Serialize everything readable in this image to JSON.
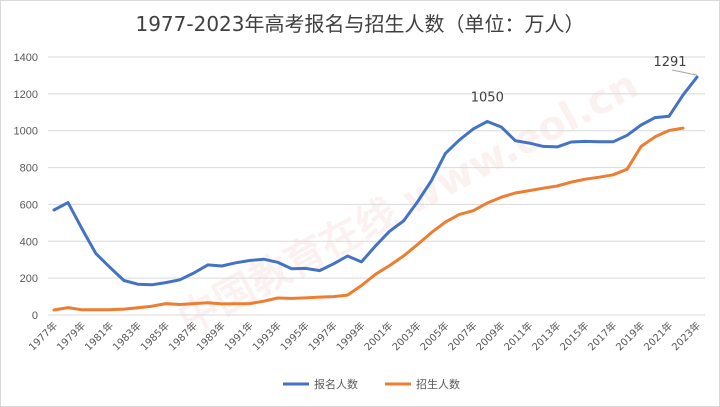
{
  "chart_data": {
    "type": "line",
    "title": "1977-2023年高考报名与招生人数（单位：万人）",
    "xlabel": "",
    "ylabel": "",
    "ylim": [
      0,
      1400
    ],
    "yticks": [
      0,
      200,
      400,
      600,
      800,
      1000,
      1200,
      1400
    ],
    "grid": true,
    "legend": "bottom",
    "x": [
      1977,
      1978,
      1979,
      1980,
      1981,
      1982,
      1983,
      1984,
      1985,
      1986,
      1987,
      1988,
      1989,
      1990,
      1991,
      1992,
      1993,
      1994,
      1995,
      1996,
      1997,
      1998,
      1999,
      2000,
      2001,
      2002,
      2003,
      2004,
      2005,
      2006,
      2007,
      2008,
      2009,
      2010,
      2011,
      2012,
      2013,
      2014,
      2015,
      2016,
      2017,
      2018,
      2019,
      2020,
      2021,
      2022,
      2023
    ],
    "xtick_labels": [
      "1977年",
      "1979年",
      "1981年",
      "1983年",
      "1985年",
      "1987年",
      "1989年",
      "1991年",
      "1993年",
      "1995年",
      "1997年",
      "1999年",
      "2001年",
      "2003年",
      "2005年",
      "2007年",
      "2009年",
      "2011年",
      "2013年",
      "2015年",
      "2017年",
      "2019年",
      "2021年",
      "2023年"
    ],
    "series": [
      {
        "name": "报名人数",
        "color": "#4472C4",
        "values": [
          570,
          610,
          468,
          333,
          259,
          187,
          167,
          164,
          176,
          191,
          228,
          272,
          266,
          283,
          296,
          303,
          286,
          251,
          253,
          241,
          278,
          320,
          288,
          375,
          454,
          510,
          613,
          729,
          877,
          950,
          1010,
          1050,
          1020,
          946,
          933,
          915,
          912,
          939,
          942,
          940,
          940,
          975,
          1031,
          1071,
          1078,
          1193,
          1291
        ]
      },
      {
        "name": "招生人数",
        "color": "#ED7D31",
        "values": [
          27,
          40,
          28,
          28,
          28,
          32,
          39,
          48,
          62,
          57,
          62,
          67,
          60,
          61,
          62,
          75,
          92,
          90,
          93,
          97,
          100,
          108,
          160,
          221,
          268,
          320,
          382,
          447,
          504,
          546,
          566,
          608,
          639,
          662,
          675,
          688,
          700,
          721,
          737,
          748,
          761,
          791,
          915,
          967,
          1001,
          1014,
          null
        ]
      }
    ],
    "annotations": [
      {
        "year": 2008,
        "text": "1050"
      },
      {
        "year": 2023,
        "text": "1291"
      }
    ]
  },
  "watermark": "中国教育在线 www.eol.cn"
}
